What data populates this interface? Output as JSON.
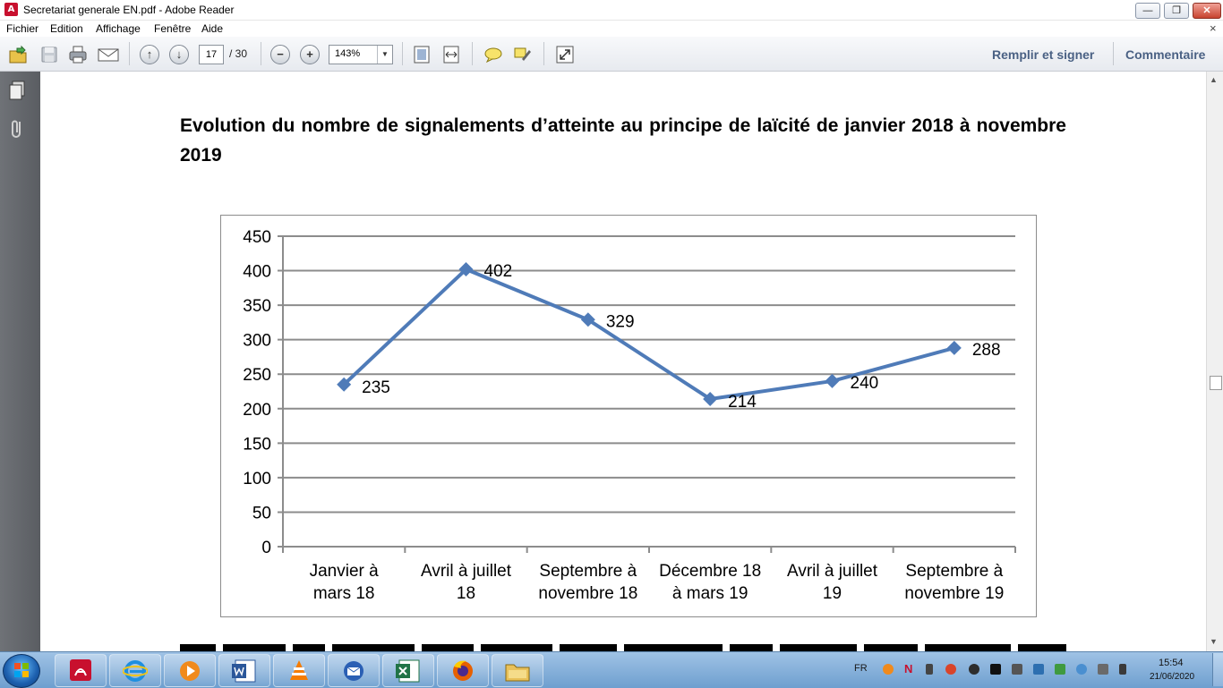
{
  "window": {
    "title": "Secretariat generale EN.pdf - Adobe Reader",
    "app_icon_label": "A",
    "minimize_glyph": "—",
    "maximize_glyph": "❐",
    "close_glyph": "✕"
  },
  "menu": {
    "items": [
      {
        "label": "Fichier"
      },
      {
        "label": "Edition"
      },
      {
        "label": "Affichage"
      },
      {
        "label": "Fenêtre"
      },
      {
        "label": "Aide"
      }
    ],
    "close_glyph": "×"
  },
  "toolbar": {
    "page_current": "17",
    "page_total": "/ 30",
    "zoom": "143%",
    "zoom_arrow": "▼",
    "prev_glyph": "↑",
    "next_glyph": "↓",
    "zoom_out_glyph": "−",
    "zoom_in_glyph": "+",
    "fill_sign_label": "Remplir et signer",
    "comment_label": "Commentaire"
  },
  "document": {
    "title": "Evolution du nombre de signalements d’atteinte au principe de laïcité de janvier 2018 à novembre 2019"
  },
  "chart_data": {
    "type": "line",
    "categories": [
      [
        "Janvier à",
        "mars 18"
      ],
      [
        "Avril à juillet",
        "18"
      ],
      [
        "Septembre à",
        "novembre 18"
      ],
      [
        "Décembre 18",
        "à mars 19"
      ],
      [
        "Avril à juillet",
        "19"
      ],
      [
        "Septembre à",
        "novembre 19"
      ]
    ],
    "series": [
      {
        "values": [
          235,
          402,
          329,
          214,
          240,
          288
        ]
      }
    ],
    "data_labels": [
      "235",
      "402",
      "329",
      "214",
      "240",
      "288"
    ],
    "y_ticks": [
      "0",
      "50",
      "100",
      "150",
      "200",
      "250",
      "300",
      "350",
      "400",
      "450"
    ],
    "ylim": [
      0,
      450
    ],
    "grid": true,
    "legend": "none",
    "line_color": "#4f7bb8",
    "grid_color": "#8c8c8c"
  },
  "scrollbar": {
    "up_glyph": "▲",
    "down_glyph": "▼"
  },
  "taskbar": {
    "language": "FR",
    "time": "15:54",
    "date": "21/06/2020",
    "apps": [
      {
        "icon": "acrobat-icon"
      },
      {
        "icon": "internet-explorer-icon"
      },
      {
        "icon": "media-player-icon"
      },
      {
        "icon": "word-icon"
      },
      {
        "icon": "vlc-icon"
      },
      {
        "icon": "thunderbird-icon"
      },
      {
        "icon": "excel-icon"
      },
      {
        "icon": "firefox-icon"
      },
      {
        "icon": "file-explorer-icon"
      }
    ]
  }
}
